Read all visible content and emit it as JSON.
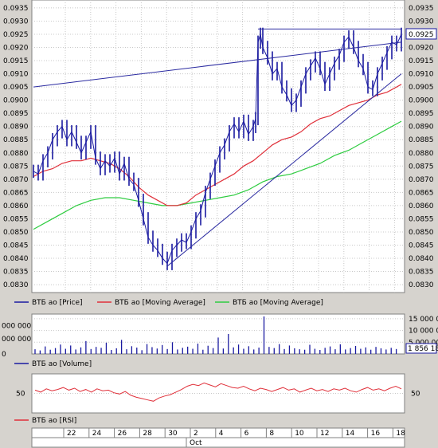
{
  "chart_data": [
    {
      "type": "line",
      "panel": "price",
      "y_ticks": [
        "0.0830",
        "0.0835",
        "0.0840",
        "0.0845",
        "0.0850",
        "0.0855",
        "0.0860",
        "0.0865",
        "0.0870",
        "0.0875",
        "0.0880",
        "0.0885",
        "0.0890",
        "0.0895",
        "0.0900",
        "0.0905",
        "0.0910",
        "0.0915",
        "0.0920",
        "0.0925",
        "0.0930",
        "0.0935"
      ],
      "ylim": [
        0.0827,
        0.0938
      ],
      "last_price_label": "0.0925",
      "colors": {
        "price": "#1a1aa0",
        "ma_fast": "#e0303a",
        "ma_slow": "#2ecc40",
        "trendline": "#2a2aa0"
      },
      "legend": [
        {
          "name": "ВТБ ао [Price]",
          "color": "#1a1aa0"
        },
        {
          "name": "ВТБ ао [Moving Average]",
          "color": "#e0303a"
        },
        {
          "name": "ВТБ ао [Moving Average]",
          "color": "#2ecc40"
        }
      ],
      "price": [
        [
          0,
          0.0873
        ],
        [
          2,
          0.0872
        ],
        [
          4,
          0.0877
        ],
        [
          6,
          0.088
        ],
        [
          8,
          0.0885
        ],
        [
          10,
          0.0888
        ],
        [
          12,
          0.089
        ],
        [
          14,
          0.0885
        ],
        [
          16,
          0.0888
        ],
        [
          18,
          0.0884
        ],
        [
          20,
          0.088
        ],
        [
          22,
          0.0884
        ],
        [
          24,
          0.0888
        ],
        [
          26,
          0.0878
        ],
        [
          28,
          0.0874
        ],
        [
          30,
          0.0877
        ],
        [
          32,
          0.0875
        ],
        [
          34,
          0.0878
        ],
        [
          36,
          0.0872
        ],
        [
          38,
          0.0876
        ],
        [
          40,
          0.087
        ],
        [
          42,
          0.0868
        ],
        [
          44,
          0.0862
        ],
        [
          46,
          0.0855
        ],
        [
          48,
          0.0848
        ],
        [
          50,
          0.0845
        ],
        [
          52,
          0.0843
        ],
        [
          54,
          0.084
        ],
        [
          56,
          0.0838
        ],
        [
          58,
          0.0843
        ],
        [
          60,
          0.0845
        ],
        [
          62,
          0.0847
        ],
        [
          64,
          0.0846
        ],
        [
          66,
          0.085
        ],
        [
          68,
          0.0855
        ],
        [
          70,
          0.0858
        ],
        [
          72,
          0.0865
        ],
        [
          74,
          0.087
        ],
        [
          76,
          0.0875
        ],
        [
          78,
          0.088
        ],
        [
          80,
          0.0883
        ],
        [
          82,
          0.0888
        ],
        [
          84,
          0.0891
        ],
        [
          86,
          0.0888
        ],
        [
          88,
          0.0892
        ],
        [
          90,
          0.0887
        ],
        [
          92,
          0.089
        ],
        [
          93,
          0.0893
        ],
        [
          94,
          0.0922
        ],
        [
          95,
          0.0925
        ],
        [
          96,
          0.092
        ],
        [
          98,
          0.0916
        ],
        [
          100,
          0.091
        ],
        [
          102,
          0.0912
        ],
        [
          104,
          0.0905
        ],
        [
          106,
          0.0902
        ],
        [
          108,
          0.0898
        ],
        [
          110,
          0.09
        ],
        [
          112,
          0.0905
        ],
        [
          114,
          0.091
        ],
        [
          116,
          0.0913
        ],
        [
          118,
          0.0916
        ],
        [
          120,
          0.0912
        ],
        [
          122,
          0.0906
        ],
        [
          124,
          0.091
        ],
        [
          126,
          0.0914
        ],
        [
          128,
          0.0917
        ],
        [
          130,
          0.0922
        ],
        [
          132,
          0.0924
        ],
        [
          134,
          0.092
        ],
        [
          136,
          0.0915
        ],
        [
          138,
          0.0912
        ],
        [
          140,
          0.0905
        ],
        [
          142,
          0.0904
        ],
        [
          144,
          0.091
        ],
        [
          146,
          0.0914
        ],
        [
          148,
          0.0918
        ],
        [
          150,
          0.0922
        ],
        [
          152,
          0.0921
        ],
        [
          154,
          0.0925
        ]
      ],
      "ma_fast": [
        [
          0,
          0.0871
        ],
        [
          4,
          0.0873
        ],
        [
          8,
          0.0874
        ],
        [
          12,
          0.0876
        ],
        [
          16,
          0.0877
        ],
        [
          20,
          0.0877
        ],
        [
          24,
          0.0878
        ],
        [
          28,
          0.0877
        ],
        [
          32,
          0.0876
        ],
        [
          36,
          0.0874
        ],
        [
          40,
          0.0871
        ],
        [
          44,
          0.0867
        ],
        [
          48,
          0.0864
        ],
        [
          52,
          0.0862
        ],
        [
          56,
          0.086
        ],
        [
          60,
          0.086
        ],
        [
          64,
          0.0861
        ],
        [
          68,
          0.0864
        ],
        [
          72,
          0.0866
        ],
        [
          76,
          0.0868
        ],
        [
          80,
          0.087
        ],
        [
          84,
          0.0872
        ],
        [
          88,
          0.0875
        ],
        [
          92,
          0.0877
        ],
        [
          96,
          0.088
        ],
        [
          100,
          0.0883
        ],
        [
          104,
          0.0885
        ],
        [
          108,
          0.0886
        ],
        [
          112,
          0.0888
        ],
        [
          116,
          0.0891
        ],
        [
          120,
          0.0893
        ],
        [
          124,
          0.0894
        ],
        [
          128,
          0.0896
        ],
        [
          132,
          0.0898
        ],
        [
          136,
          0.0899
        ],
        [
          140,
          0.09
        ],
        [
          144,
          0.0902
        ],
        [
          148,
          0.0903
        ],
        [
          152,
          0.0905
        ],
        [
          154,
          0.0906
        ]
      ],
      "ma_slow": [
        [
          0,
          0.0851
        ],
        [
          6,
          0.0854
        ],
        [
          12,
          0.0857
        ],
        [
          18,
          0.086
        ],
        [
          24,
          0.0862
        ],
        [
          30,
          0.0863
        ],
        [
          36,
          0.0863
        ],
        [
          42,
          0.0862
        ],
        [
          48,
          0.0861
        ],
        [
          54,
          0.086
        ],
        [
          60,
          0.086
        ],
        [
          66,
          0.0861
        ],
        [
          72,
          0.0862
        ],
        [
          78,
          0.0863
        ],
        [
          84,
          0.0864
        ],
        [
          90,
          0.0866
        ],
        [
          96,
          0.0869
        ],
        [
          102,
          0.0871
        ],
        [
          108,
          0.0872
        ],
        [
          114,
          0.0874
        ],
        [
          120,
          0.0876
        ],
        [
          126,
          0.0879
        ],
        [
          132,
          0.0881
        ],
        [
          138,
          0.0884
        ],
        [
          144,
          0.0887
        ],
        [
          150,
          0.089
        ],
        [
          154,
          0.0892
        ]
      ],
      "trendlines": [
        {
          "from": [
            0,
            0.0905
          ],
          "to": [
            154,
            0.0922
          ]
        },
        {
          "from": [
            56,
            0.0837
          ],
          "to": [
            154,
            0.091
          ]
        },
        {
          "from": [
            94,
            0.0927
          ],
          "to": [
            154,
            0.0927
          ]
        }
      ]
    },
    {
      "type": "bar",
      "panel": "volume",
      "y_ticks_right": [
        "5 000 000",
        "10 000 000",
        "15 000 000"
      ],
      "y_ticks_left": [
        "000 000",
        "000 000",
        "0"
      ],
      "value_label": "1 856 18",
      "legend": [
        {
          "name": "ВТБ ао [Volume]",
          "color": "#1a1aa0"
        }
      ],
      "ylim": [
        0,
        17000000
      ],
      "values": [
        2000000,
        1500000,
        3200000,
        1800000,
        2500000,
        4000000,
        2200000,
        3600000,
        1900000,
        2800000,
        5500000,
        2100000,
        3000000,
        2600000,
        4800000,
        1700000,
        2400000,
        6000000,
        2000000,
        3300000,
        2700000,
        1600000,
        4200000,
        2900000,
        2300000,
        3800000,
        2100000,
        5000000,
        1900000,
        2600000,
        3100000,
        2200000,
        4400000,
        1800000,
        3500000,
        2500000,
        7000000,
        2300000,
        8500000,
        2800000,
        4000000,
        2200000,
        3300000,
        1900000,
        2700000,
        16000000,
        3000000,
        2500000,
        4200000,
        2100000,
        3600000,
        2400000,
        2000000,
        1800000,
        3900000,
        2200000,
        1700000,
        2600000,
        3200000,
        2000000,
        4100000,
        1900000,
        2500000,
        3400000,
        2200000,
        2800000,
        1800000,
        3000000,
        2400000,
        1900000,
        2600000,
        2100000
      ]
    },
    {
      "type": "line",
      "panel": "rsi",
      "y_ticks": [
        "50"
      ],
      "ylim": [
        20,
        80
      ],
      "legend": [
        {
          "name": "ВТБ ао [RSI]",
          "color": "#e0303a"
        }
      ],
      "values": [
        55,
        52,
        57,
        54,
        56,
        59,
        55,
        58,
        53,
        56,
        52,
        57,
        54,
        55,
        51,
        49,
        53,
        47,
        44,
        42,
        40,
        38,
        43,
        46,
        48,
        52,
        56,
        61,
        64,
        62,
        66,
        63,
        60,
        65,
        62,
        59,
        58,
        61,
        57,
        54,
        58,
        56,
        53,
        56,
        59,
        55,
        57,
        52,
        55,
        58,
        54,
        56,
        53,
        57,
        55,
        58,
        54,
        52,
        56,
        59,
        55,
        57,
        54,
        58,
        61,
        57
      ]
    }
  ],
  "x_axis": {
    "labels": [
      "22",
      "24",
      "26",
      "28",
      "30",
      "2",
      "4",
      "6",
      "8",
      "10",
      "12",
      "14",
      "16",
      "18"
    ],
    "month_label": "Oct"
  }
}
